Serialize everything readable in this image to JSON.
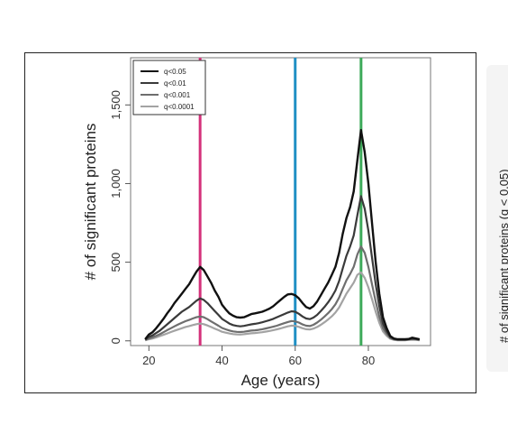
{
  "chart_data": {
    "type": "line",
    "xlabel": "Age (years)",
    "ylabel": "# of significant proteins",
    "xlim": [
      15,
      97
    ],
    "ylim": [
      -30,
      1800
    ],
    "xticks": [
      20,
      40,
      60,
      80
    ],
    "yticks": [
      0,
      500,
      1000,
      1500
    ],
    "ytick_labels": [
      "0",
      "500",
      "1,000",
      "1,500"
    ],
    "legend_position": "top-left",
    "vlines": [
      {
        "x": 34,
        "color": "#d4317a"
      },
      {
        "x": 60,
        "color": "#1f8fc4"
      },
      {
        "x": 78,
        "color": "#3daa5a"
      }
    ],
    "x": [
      19,
      20,
      21,
      22,
      23,
      24,
      25,
      26,
      27,
      28,
      29,
      30,
      31,
      32,
      33,
      34,
      35,
      36,
      37,
      38,
      39,
      40,
      41,
      42,
      43,
      44,
      45,
      46,
      47,
      48,
      49,
      50,
      51,
      52,
      53,
      54,
      55,
      56,
      57,
      58,
      59,
      60,
      61,
      62,
      63,
      64,
      65,
      66,
      67,
      68,
      69,
      70,
      71,
      72,
      73,
      74,
      75,
      76,
      77,
      78,
      79,
      80,
      81,
      82,
      83,
      84,
      85,
      86,
      87,
      88,
      89,
      90,
      91,
      92,
      93,
      94
    ],
    "series": [
      {
        "name": "q<0.05",
        "color": "#111111",
        "width": 2.4,
        "values": [
          10,
          40,
          55,
          80,
          110,
          140,
          175,
          205,
          240,
          270,
          300,
          330,
          360,
          400,
          440,
          470,
          450,
          410,
          370,
          320,
          280,
          230,
          200,
          175,
          160,
          150,
          148,
          150,
          160,
          170,
          175,
          180,
          185,
          195,
          205,
          220,
          240,
          260,
          280,
          295,
          298,
          290,
          270,
          240,
          215,
          205,
          220,
          250,
          290,
          330,
          370,
          420,
          470,
          560,
          680,
          780,
          850,
          950,
          1150,
          1340,
          1200,
          1000,
          750,
          500,
          300,
          150,
          80,
          30,
          15,
          10,
          10,
          10,
          12,
          20,
          15,
          10
        ]
      },
      {
        "name": "q<0.01",
        "color": "#3a3a3a",
        "width": 2.2,
        "values": [
          8,
          25,
          35,
          50,
          65,
          85,
          105,
          125,
          145,
          165,
          185,
          200,
          215,
          235,
          255,
          270,
          260,
          240,
          215,
          190,
          165,
          140,
          125,
          110,
          100,
          95,
          92,
          95,
          100,
          105,
          108,
          112,
          118,
          125,
          132,
          140,
          150,
          160,
          170,
          180,
          188,
          185,
          172,
          155,
          142,
          138,
          148,
          165,
          190,
          215,
          245,
          280,
          320,
          380,
          460,
          540,
          600,
          670,
          800,
          920,
          840,
          700,
          530,
          360,
          220,
          110,
          60,
          25,
          12,
          8,
          8,
          8,
          10,
          14,
          12,
          8
        ]
      },
      {
        "name": "q<0.001",
        "color": "#6e6e6e",
        "width": 2.2,
        "values": [
          5,
          15,
          22,
          32,
          42,
          55,
          68,
          80,
          92,
          104,
          115,
          125,
          133,
          142,
          150,
          155,
          150,
          138,
          124,
          110,
          96,
          82,
          73,
          66,
          60,
          57,
          56,
          58,
          62,
          65,
          67,
          70,
          74,
          79,
          84,
          90,
          96,
          104,
          112,
          120,
          126,
          124,
          116,
          104,
          96,
          94,
          102,
          116,
          134,
          154,
          176,
          202,
          232,
          275,
          330,
          385,
          425,
          470,
          550,
          600,
          560,
          470,
          360,
          250,
          155,
          80,
          45,
          18,
          9,
          6,
          6,
          6,
          8,
          10,
          9,
          6
        ]
      },
      {
        "name": "q<0.0001",
        "color": "#a3a3a3",
        "width": 2.2,
        "values": [
          3,
          10,
          15,
          22,
          30,
          38,
          47,
          56,
          64,
          72,
          80,
          88,
          94,
          100,
          106,
          110,
          106,
          98,
          88,
          78,
          68,
          58,
          52,
          47,
          43,
          41,
          40,
          42,
          45,
          48,
          50,
          52,
          55,
          59,
          63,
          68,
          73,
          79,
          86,
          92,
          97,
          95,
          89,
          80,
          74,
          72,
          78,
          88,
          102,
          118,
          136,
          156,
          180,
          212,
          255,
          300,
          335,
          370,
          420,
          435,
          400,
          340,
          265,
          185,
          115,
          60,
          32,
          13,
          6,
          4,
          4,
          4,
          6,
          8,
          7,
          4
        ]
      }
    ]
  },
  "side_label": "# of significant proteins (q < 0.05)"
}
